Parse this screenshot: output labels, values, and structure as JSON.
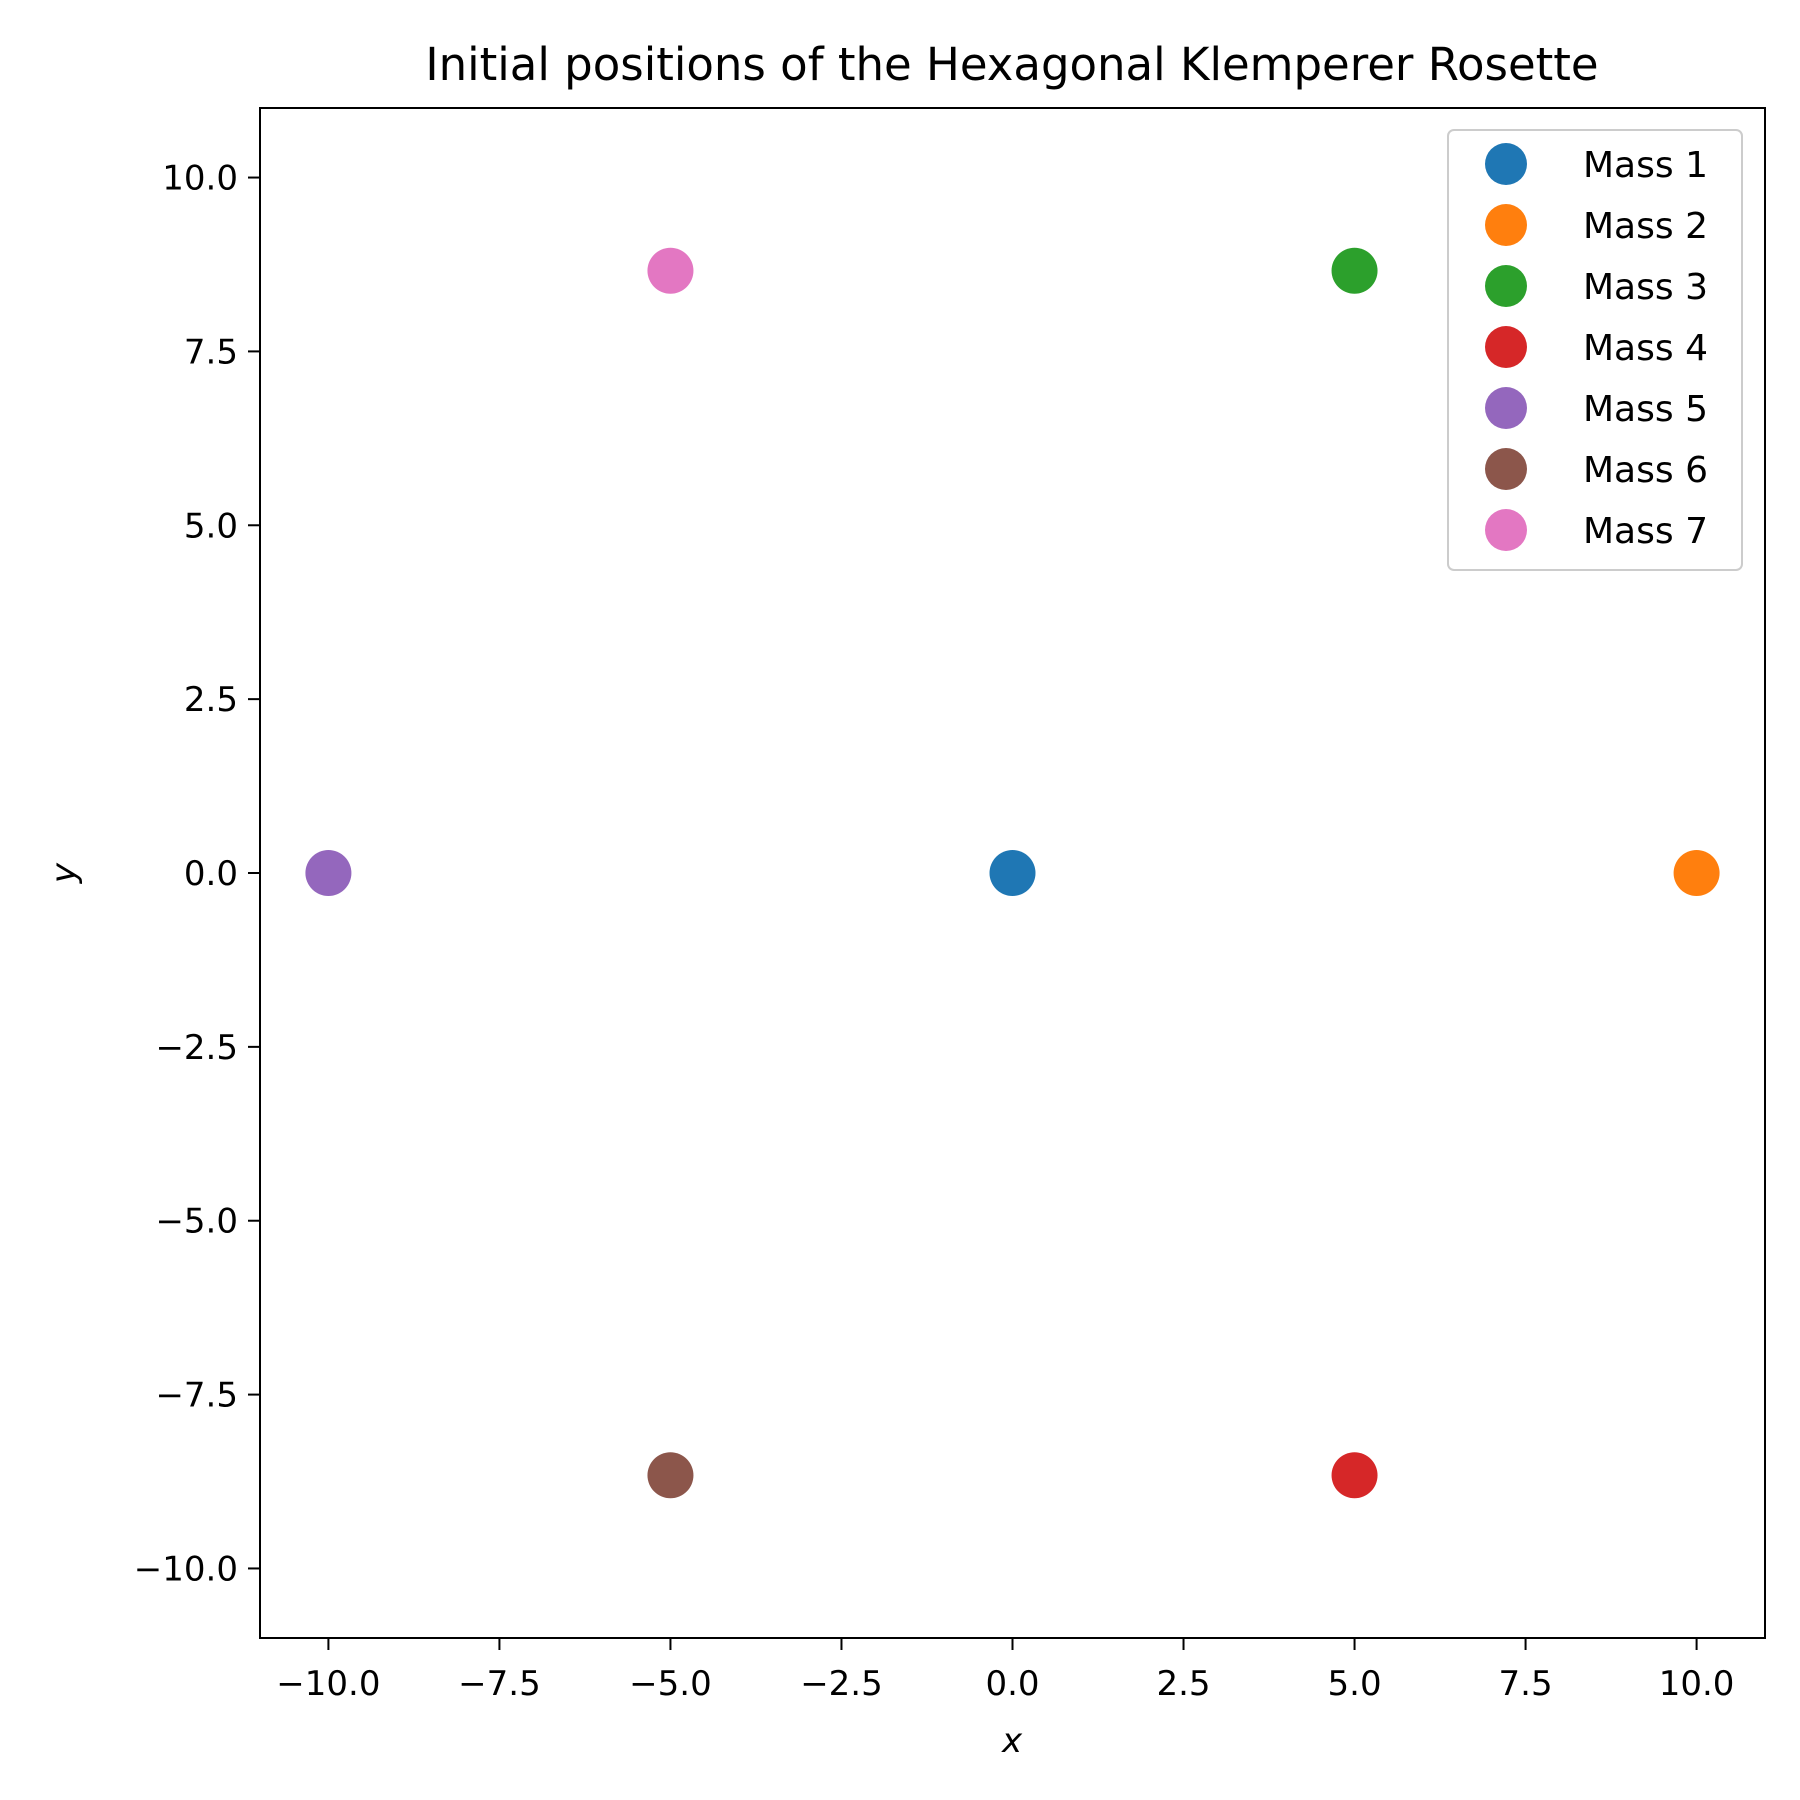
{
  "chart_data": {
    "type": "scatter",
    "title": "Initial positions of the Hexagonal Klemperer Rosette",
    "xlabel": "x",
    "ylabel": "y",
    "xlim": [
      -11,
      11
    ],
    "ylim": [
      -11,
      11
    ],
    "xticks": [
      -10.0,
      -7.5,
      -5.0,
      -2.5,
      0.0,
      2.5,
      5.0,
      7.5,
      10.0
    ],
    "yticks": [
      -10.0,
      -7.5,
      -5.0,
      -2.5,
      0.0,
      2.5,
      5.0,
      7.5,
      10.0
    ],
    "xtick_labels": [
      "−10.0",
      "−7.5",
      "−5.0",
      "−2.5",
      "0.0",
      "2.5",
      "5.0",
      "7.5",
      "10.0"
    ],
    "ytick_labels": [
      "−10.0",
      "−7.5",
      "−5.0",
      "−2.5",
      "0.0",
      "2.5",
      "5.0",
      "7.5",
      "10.0"
    ],
    "grid": false,
    "legend_position": "top-right",
    "series": [
      {
        "name": "Mass 1",
        "x": 0.0,
        "y": 0.0,
        "color": "#1f77b4"
      },
      {
        "name": "Mass 2",
        "x": 10.0,
        "y": 0.0,
        "color": "#ff7f0e"
      },
      {
        "name": "Mass 3",
        "x": 5.0,
        "y": 8.66,
        "color": "#2ca02c"
      },
      {
        "name": "Mass 4",
        "x": 5.0,
        "y": -8.66,
        "color": "#d62728"
      },
      {
        "name": "Mass 5",
        "x": -10.0,
        "y": 0.0,
        "color": "#9467bd"
      },
      {
        "name": "Mass 6",
        "x": -5.0,
        "y": -8.66,
        "color": "#8c564b"
      },
      {
        "name": "Mass 7",
        "x": -5.0,
        "y": 8.66,
        "color": "#e377c2"
      }
    ]
  }
}
